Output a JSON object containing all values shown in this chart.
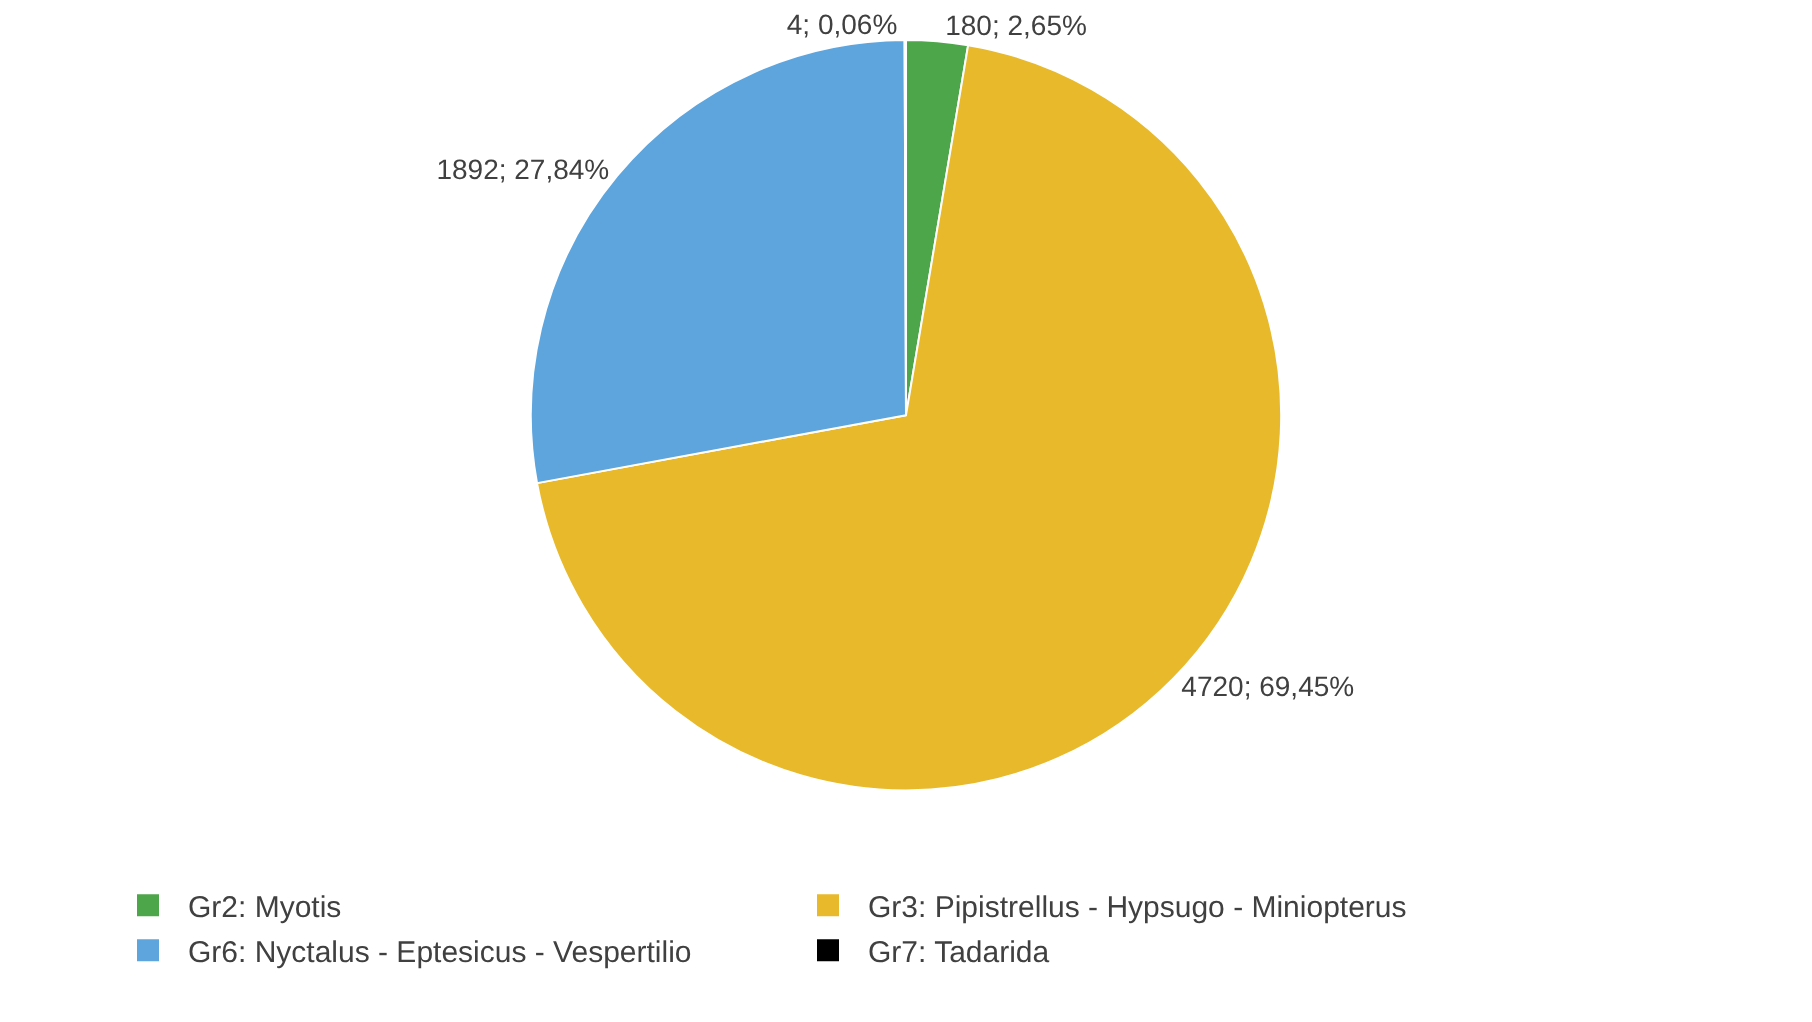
{
  "chart_data": {
    "type": "pie",
    "categories": [
      "Gr2: Myotis",
      "Gr3: Pipistrellus - Hypsugo - Miniopterus",
      "Gr6: Nyctalus - Eptesicus - Vespertilio",
      "Gr7: Tadarida"
    ],
    "values": [
      180,
      4720,
      1892,
      4
    ],
    "colors": [
      "#4ea64a",
      "#e8b92a",
      "#5ea5dd",
      "#000000"
    ],
    "value_labels": [
      "180; 2,65%",
      "4720; 69,45%",
      "1892; 27,84%",
      "4; 0,06%"
    ],
    "legend": "bottom"
  }
}
